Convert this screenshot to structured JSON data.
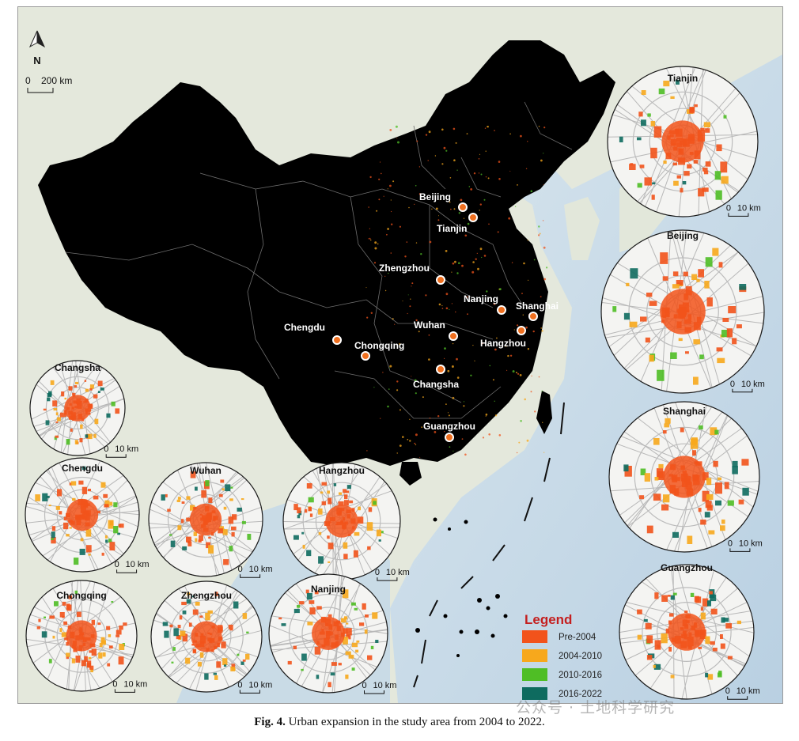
{
  "north_arrow": {
    "label": "N"
  },
  "main_scale": {
    "zero": "0",
    "value": "200 km"
  },
  "colors": {
    "land_outside": "#e6e9dd",
    "sea": "#c7d9e6",
    "china_fill": "#000000",
    "province_line": "#6a6a6a",
    "pre_2004": "#f2531b",
    "p2004_2010": "#f7a81c",
    "p2010_2016": "#4fbe25",
    "p2016_2022": "#0e6b5f"
  },
  "cities": [
    {
      "id": "beijing",
      "name": "Beijing"
    },
    {
      "id": "tianjin",
      "name": "Tianjin"
    },
    {
      "id": "zhengzhou",
      "name": "Zhengzhou"
    },
    {
      "id": "nanjing",
      "name": "Nanjing"
    },
    {
      "id": "shanghai",
      "name": "Shanghai"
    },
    {
      "id": "chengdu",
      "name": "Chengdu"
    },
    {
      "id": "wuhan",
      "name": "Wuhan"
    },
    {
      "id": "hangzhou",
      "name": "Hangzhou"
    },
    {
      "id": "chongqing",
      "name": "Chongqing"
    },
    {
      "id": "changsha",
      "name": "Changsha"
    },
    {
      "id": "guangzhou",
      "name": "Guangzhou"
    }
  ],
  "insets": [
    {
      "id": "tianjin",
      "title": "Tianjin",
      "scale_zero": "0",
      "scale_value": "10 km"
    },
    {
      "id": "beijing",
      "title": "Beijing",
      "scale_zero": "0",
      "scale_value": "10 km"
    },
    {
      "id": "shanghai",
      "title": "Shanghai",
      "scale_zero": "0",
      "scale_value": "10 km"
    },
    {
      "id": "guangzhou",
      "title": "Guangzhou",
      "scale_zero": "0",
      "scale_value": "10 km"
    },
    {
      "id": "changsha",
      "title": "Changsha",
      "scale_zero": "0",
      "scale_value": "10 km"
    },
    {
      "id": "chengdu",
      "title": "Chengdu",
      "scale_zero": "0",
      "scale_value": "10 km"
    },
    {
      "id": "wuhan",
      "title": "Wuhan",
      "scale_zero": "0",
      "scale_value": "10 km"
    },
    {
      "id": "hangzhou",
      "title": "Hangzhou",
      "scale_zero": "0",
      "scale_value": "10 km"
    },
    {
      "id": "chongqing",
      "title": "Chongqing",
      "scale_zero": "0",
      "scale_value": "10 km"
    },
    {
      "id": "zhengzhou",
      "title": "Zhengzhou",
      "scale_zero": "0",
      "scale_value": "10 km"
    },
    {
      "id": "nanjing",
      "title": "Nanjing",
      "scale_zero": "0",
      "scale_value": "10 km"
    }
  ],
  "legend": {
    "title": "Legend",
    "items": [
      {
        "label": "Pre-2004",
        "color": "#f2531b"
      },
      {
        "label": "2004-2010",
        "color": "#f7a81c"
      },
      {
        "label": "2010-2016",
        "color": "#4fbe25"
      },
      {
        "label": "2016-2022",
        "color": "#0e6b5f"
      }
    ]
  },
  "caption": {
    "label": "Fig. 4.",
    "text": "Urban expansion in the study area from 2004 to 2022."
  },
  "watermark": "公众号 · 土地科学研究"
}
